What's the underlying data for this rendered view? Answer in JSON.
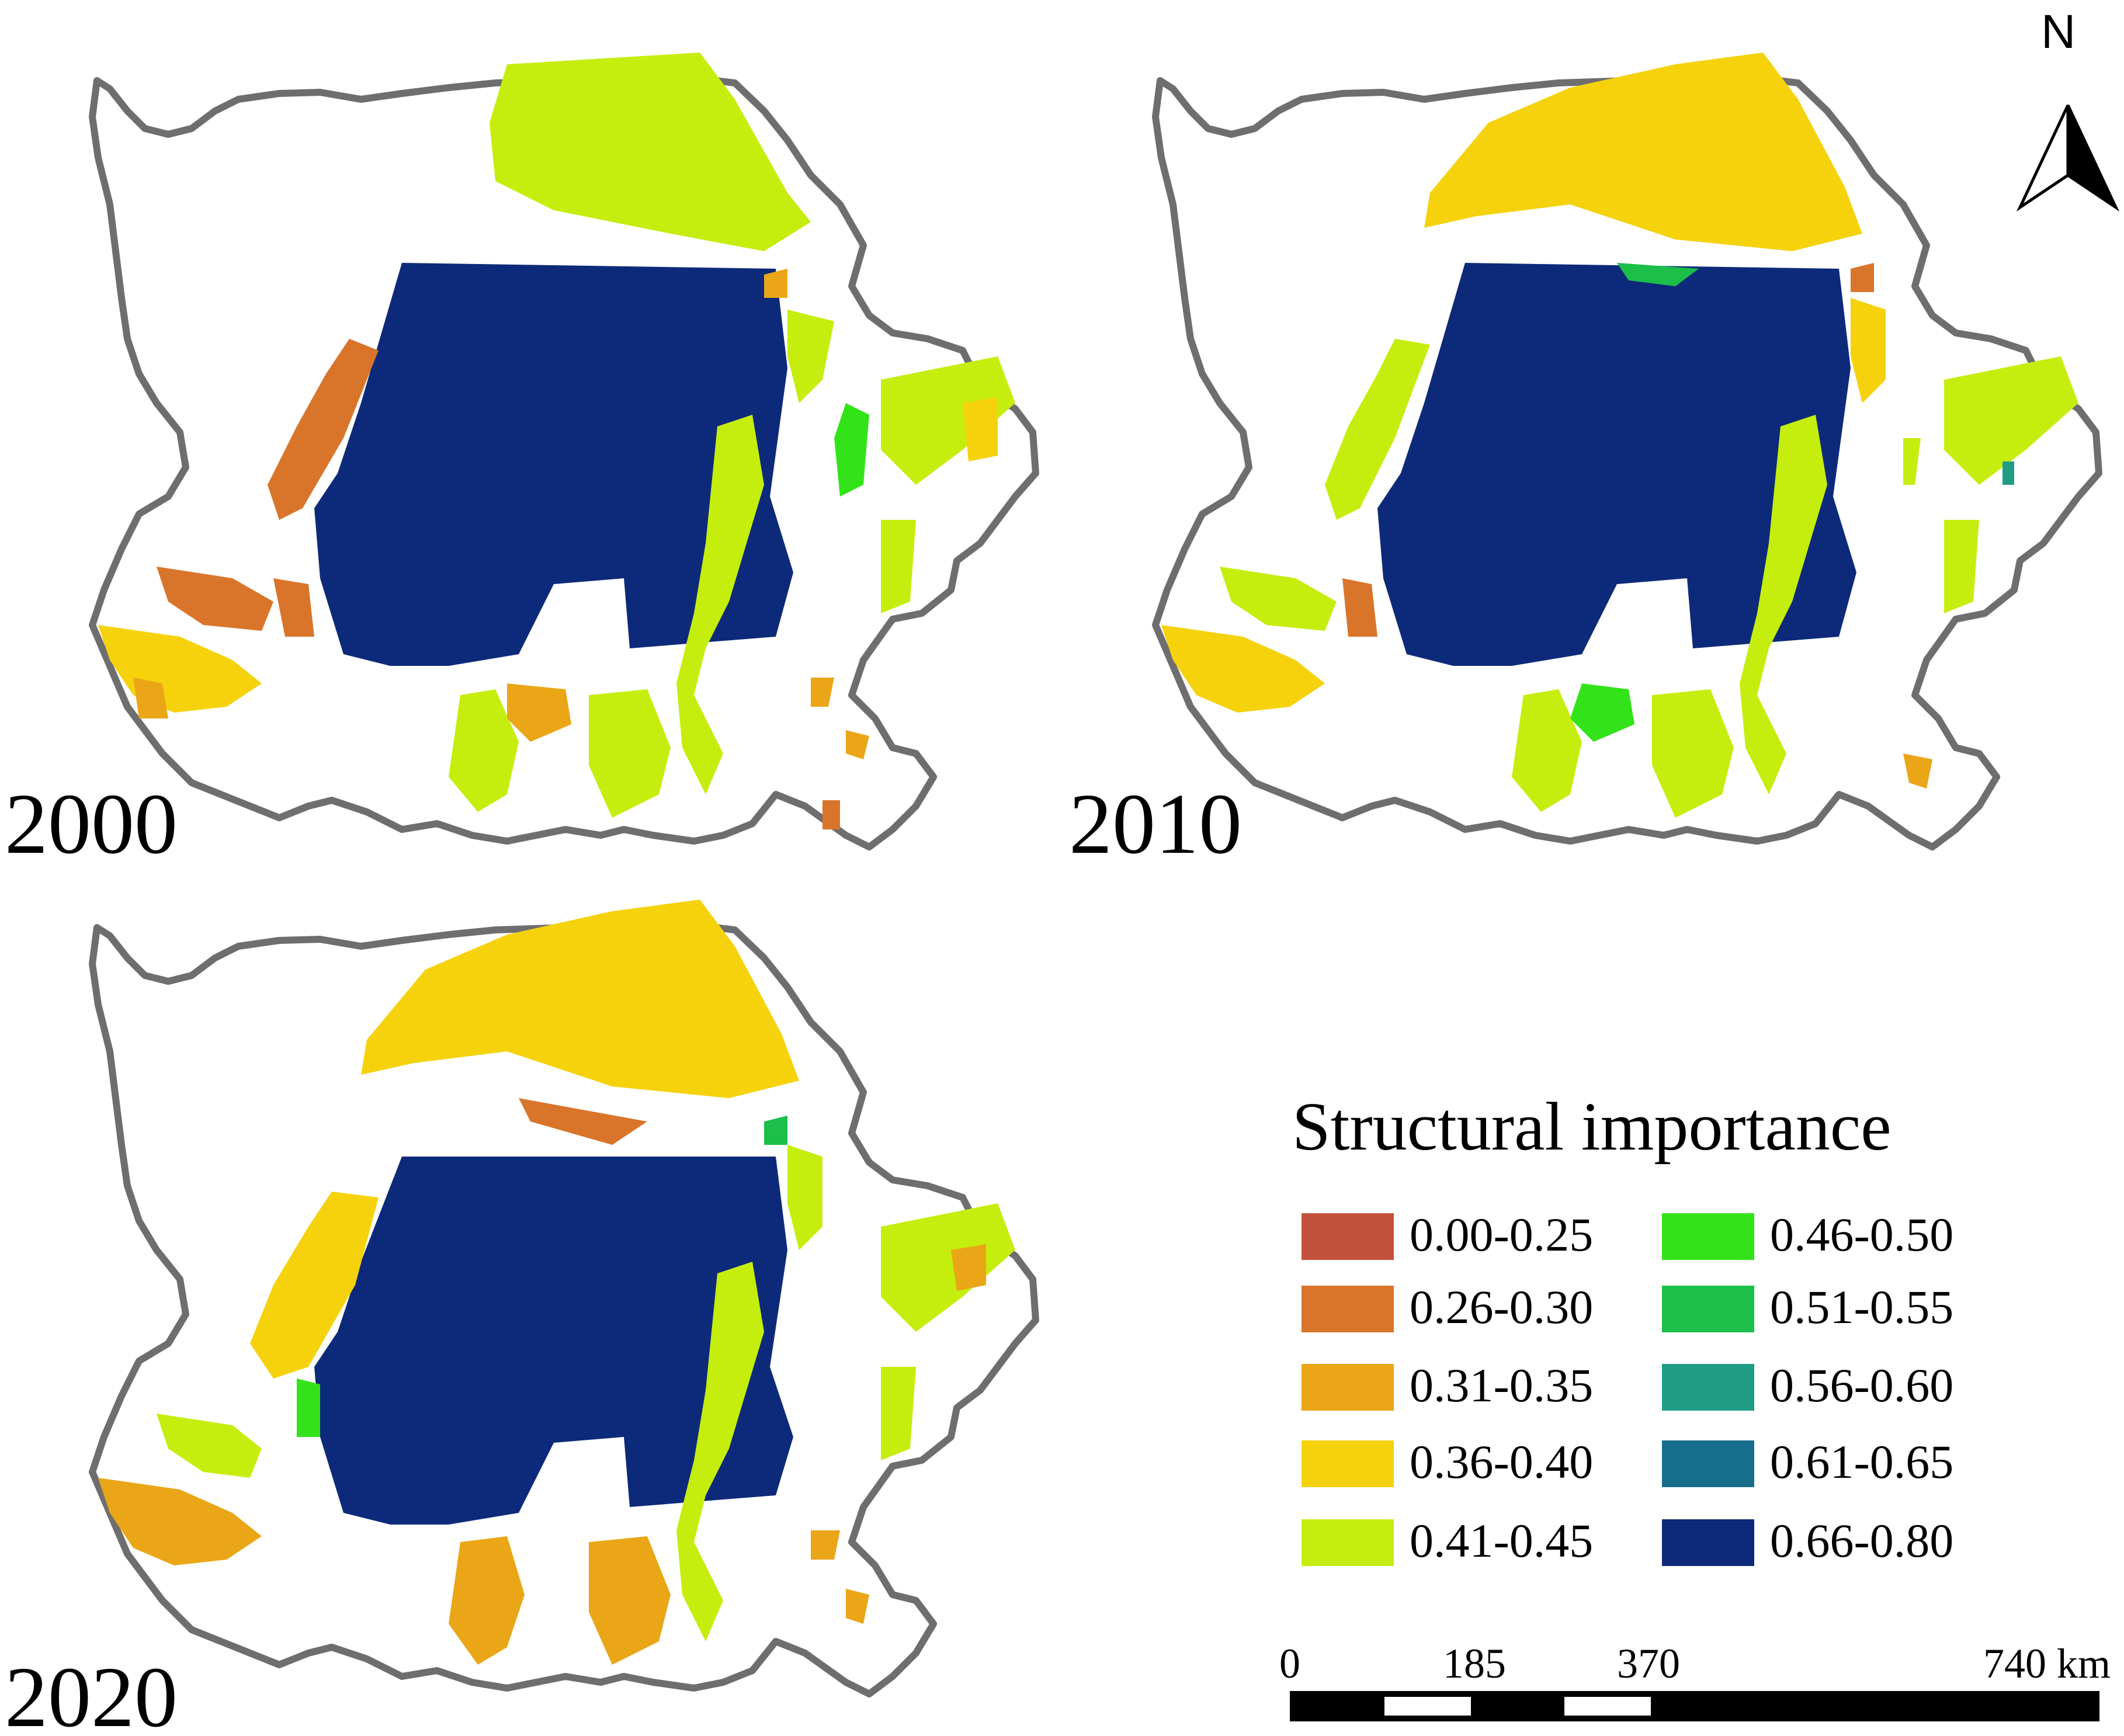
{
  "panels": [
    {
      "year": "2000"
    },
    {
      "year": "2010"
    },
    {
      "year": "2020"
    }
  ],
  "legend": {
    "title": "Structural importance",
    "classes": [
      {
        "label": "0.00-0.25",
        "color": "#c4513b"
      },
      {
        "label": "0.26-0.30",
        "color": "#d9752a"
      },
      {
        "label": "0.31-0.35",
        "color": "#eaa617"
      },
      {
        "label": "0.36-0.40",
        "color": "#f5d20c"
      },
      {
        "label": "0.41-0.45",
        "color": "#c5ee0e"
      },
      {
        "label": "0.46-0.50",
        "color": "#33e31a"
      },
      {
        "label": "0.51-0.55",
        "color": "#1bbf4a"
      },
      {
        "label": "0.56-0.60",
        "color": "#209c85"
      },
      {
        "label": "0.61-0.65",
        "color": "#176e8c"
      },
      {
        "label": "0.66-0.80",
        "color": "#0d2a7a"
      }
    ]
  },
  "scale_bar": {
    "labels": [
      "0",
      "185",
      "370",
      "740 km"
    ]
  },
  "north_arrow": {
    "letter": "N",
    "icon": "north-arrow-icon"
  },
  "boundary_color": "#6e6e6e"
}
